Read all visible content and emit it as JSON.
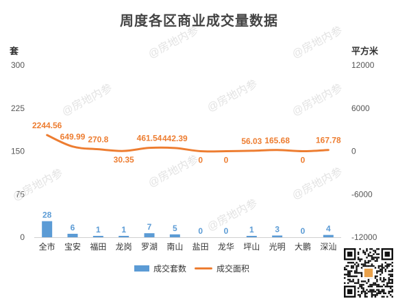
{
  "chart_data": {
    "type": "bar+line",
    "title": "周度各区商业成交量数据",
    "categories": [
      "全市",
      "宝安",
      "福田",
      "龙岗",
      "罗湖",
      "南山",
      "盐田",
      "龙华",
      "坪山",
      "光明",
      "大鹏",
      "深汕"
    ],
    "series": [
      {
        "name": "成交套数",
        "type": "bar",
        "axis": "left",
        "values": [
          28,
          6,
          1,
          1,
          7,
          5,
          0,
          0,
          1,
          3,
          0,
          4
        ],
        "labels": [
          "28",
          "6",
          "1",
          "1",
          "7",
          "5",
          "0",
          "0",
          "1",
          "3",
          "0",
          "4"
        ]
      },
      {
        "name": "成交面积",
        "type": "line",
        "axis": "right",
        "values": [
          2244.56,
          649.99,
          270.8,
          30.35,
          461.54,
          442.39,
          0,
          0,
          56.03,
          165.68,
          0,
          167.78
        ],
        "labels": [
          "2244.56",
          "649.99",
          "270.8",
          "30.35",
          "461.54",
          "442.39",
          "0",
          "0",
          "56.03",
          "165.68",
          "0",
          "167.78"
        ]
      }
    ],
    "y_left": {
      "label": "套",
      "min": 0,
      "max": 300,
      "ticks": [
        0,
        75,
        150,
        225,
        300
      ],
      "tick_labels": [
        "0",
        "75",
        "150",
        "225",
        "300"
      ]
    },
    "y_right": {
      "label": "平方米",
      "min": -12000,
      "max": 12000,
      "ticks": [
        -12000,
        -6000,
        0,
        6000,
        12000
      ],
      "tick_labels": [
        "-12000",
        "-6000",
        "0",
        "6000",
        "12000"
      ]
    },
    "legend": "bottom",
    "grid": false,
    "colors": {
      "bar": "#5b9bd5",
      "line": "#ed7d31",
      "axis_text": "#555555"
    }
  },
  "watermark_text": "@房地内参"
}
